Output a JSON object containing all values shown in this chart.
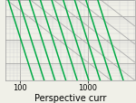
{
  "xlabel": "Perspective curr",
  "xlim": [
    60,
    5000
  ],
  "ylim": [
    0.002,
    5
  ],
  "background_color": "#f0f0e8",
  "grid_color_major": "#999999",
  "grid_color_minor": "#cccccc",
  "green_color": "#00aa44",
  "gray_line_color": "#aaaaaa",
  "green_anchors": [
    [
      70,
      3.0
    ],
    [
      100,
      3.0
    ],
    [
      145,
      3.0
    ],
    [
      210,
      3.0
    ],
    [
      310,
      3.0
    ],
    [
      460,
      3.0
    ],
    [
      680,
      3.0
    ],
    [
      1000,
      3.0
    ],
    [
      1500,
      3.0
    ]
  ],
  "green_slope": -9.0,
  "gray_anchors": [
    [
      80,
      3.0
    ],
    [
      180,
      3.0
    ],
    [
      400,
      3.0
    ],
    [
      900,
      3.0
    ],
    [
      2000,
      3.0
    ]
  ],
  "gray_slope": -2.2,
  "x_ticks": [
    100,
    1000
  ],
  "x_tick_labels": [
    "100",
    "1000"
  ],
  "xlabel_fontsize": 7,
  "tick_fontsize": 6
}
